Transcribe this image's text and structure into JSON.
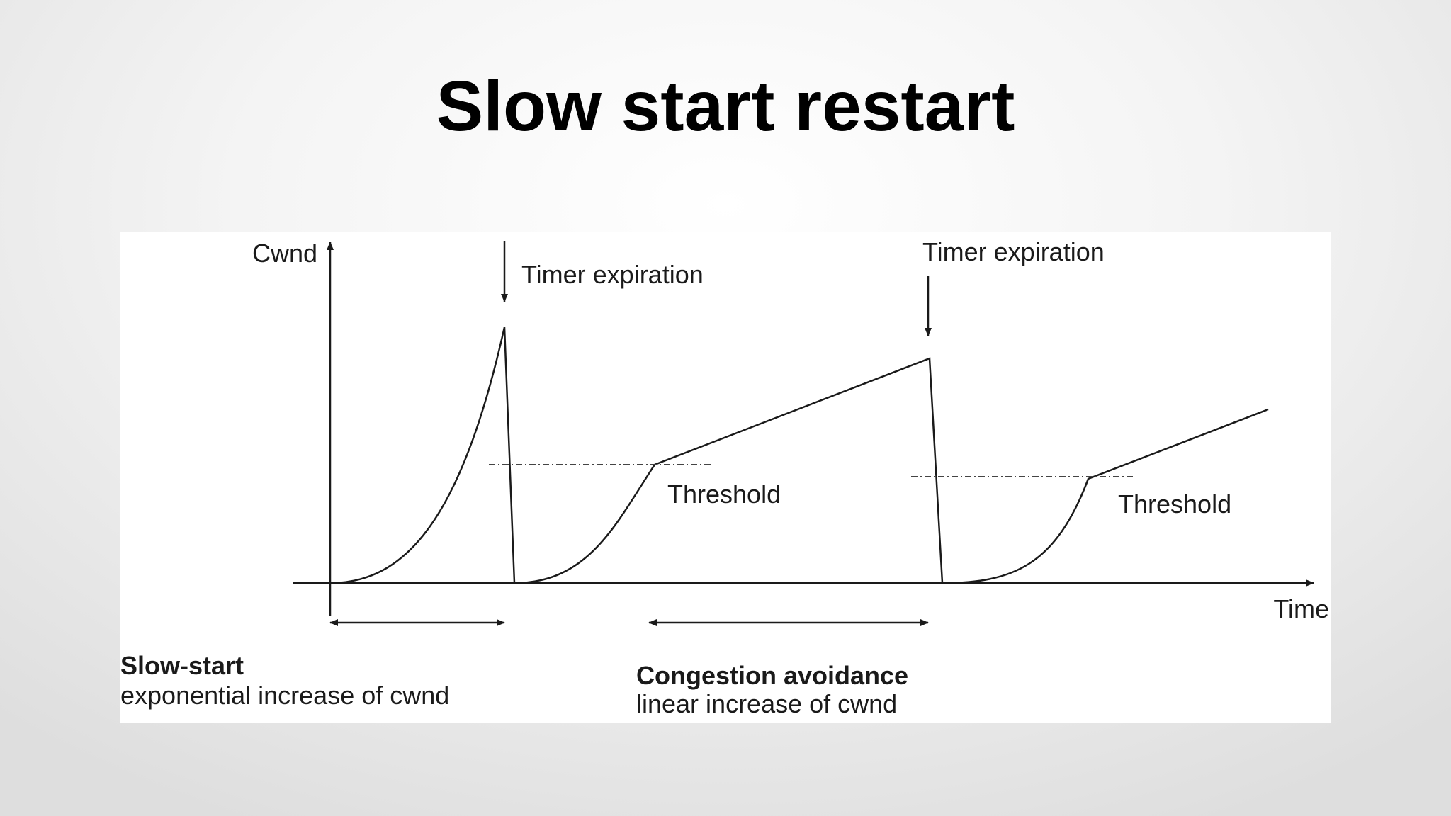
{
  "slide": {
    "title": "Slow start restart"
  },
  "diagram": {
    "y_axis_label": "Cwnd",
    "x_axis_label": "Time",
    "timer_label_1": "Timer expiration",
    "timer_label_2": "Timer expiration",
    "threshold_label_1": "Threshold",
    "threshold_label_2": "Threshold",
    "phase_1_title": "Slow-start",
    "phase_1_desc": "exponential increase of cwnd",
    "phase_2_title": "Congestion avoidance",
    "phase_2_desc": "linear increase of cwnd"
  },
  "colors": {
    "line": "#1a1a1a",
    "panel_background": "#ffffff",
    "text": "#000000"
  }
}
